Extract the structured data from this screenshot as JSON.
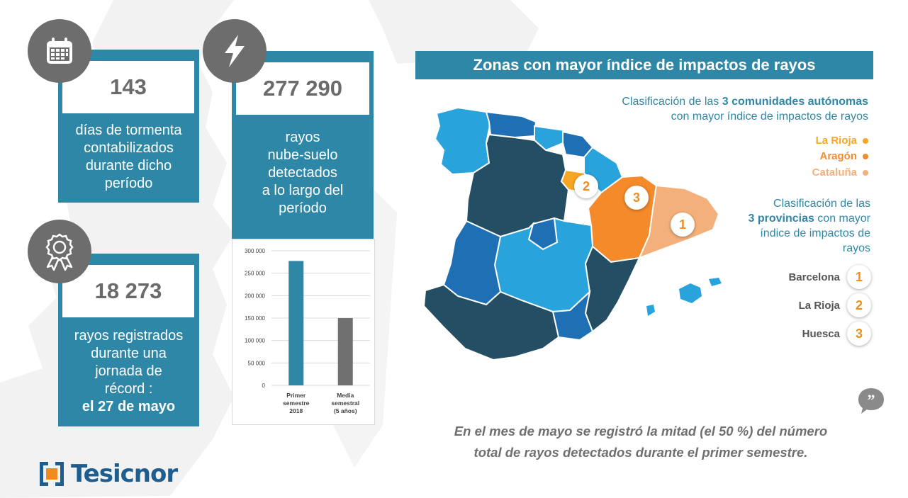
{
  "cards": {
    "storm_days": {
      "value": "143",
      "desc_lines": [
        "días de tormenta",
        "contabilizados",
        "durante dicho",
        "período"
      ],
      "icon": "calendar-icon"
    },
    "cloud_ground": {
      "value": "277 290",
      "desc_lines": [
        "rayos",
        "nube-suelo",
        "detectados",
        "a lo largo del",
        "período"
      ],
      "icon": "lightning-icon"
    },
    "record_day": {
      "value": "18 273",
      "desc_lines": [
        "rayos registrados",
        "durante una",
        "jornada de",
        "récord :"
      ],
      "desc_bold": "el 27 de mayo",
      "icon": "award-ribbon-icon"
    }
  },
  "chart_data": {
    "type": "bar",
    "categories": [
      [
        "Primer",
        "semestre",
        "2018"
      ],
      [
        "Media",
        "semestral",
        "(5 años)"
      ]
    ],
    "values": [
      277290,
      150000
    ],
    "colors": [
      "#2e87a6",
      "#707070"
    ],
    "ylim": [
      0,
      300000
    ],
    "yticks": [
      "0",
      "50 000",
      "100 000",
      "150 000",
      "200 000",
      "250 000",
      "300 000"
    ],
    "ytick_values": [
      0,
      50000,
      100000,
      150000,
      200000,
      250000,
      300000
    ],
    "grid": true
  },
  "banner": {
    "title": "Zonas con mayor índice de impactos de rayos"
  },
  "communities": {
    "intro_pre": "Clasificación de las ",
    "intro_bold": "3 comunidades autónomas",
    "intro_post": "con mayor índice de impactos de rayos",
    "items": [
      {
        "name": "La Rioja",
        "color": "#f5a623"
      },
      {
        "name": "Aragón",
        "color": "#f28a2e"
      },
      {
        "name": "Cataluña",
        "color": "#f3b07a"
      }
    ]
  },
  "provinces": {
    "intro_line1": "Clasificación de las",
    "intro_bold": "3 provincias",
    "intro_line2_post": " con mayor",
    "intro_line3": "índice de impactos de",
    "intro_line4": "rayos",
    "items": [
      {
        "name": "Barcelona",
        "rank": "1"
      },
      {
        "name": "La Rioja",
        "rank": "2"
      },
      {
        "name": "Huesca",
        "rank": "3"
      }
    ]
  },
  "map_badges": [
    "2",
    "3",
    "1"
  ],
  "quote": {
    "line1": "En el mes de mayo se registró la mitad (el 50 %) del número",
    "line2": "total de rayos detectados durante el primer semestre."
  },
  "logo": {
    "text": "Tesicnor"
  }
}
